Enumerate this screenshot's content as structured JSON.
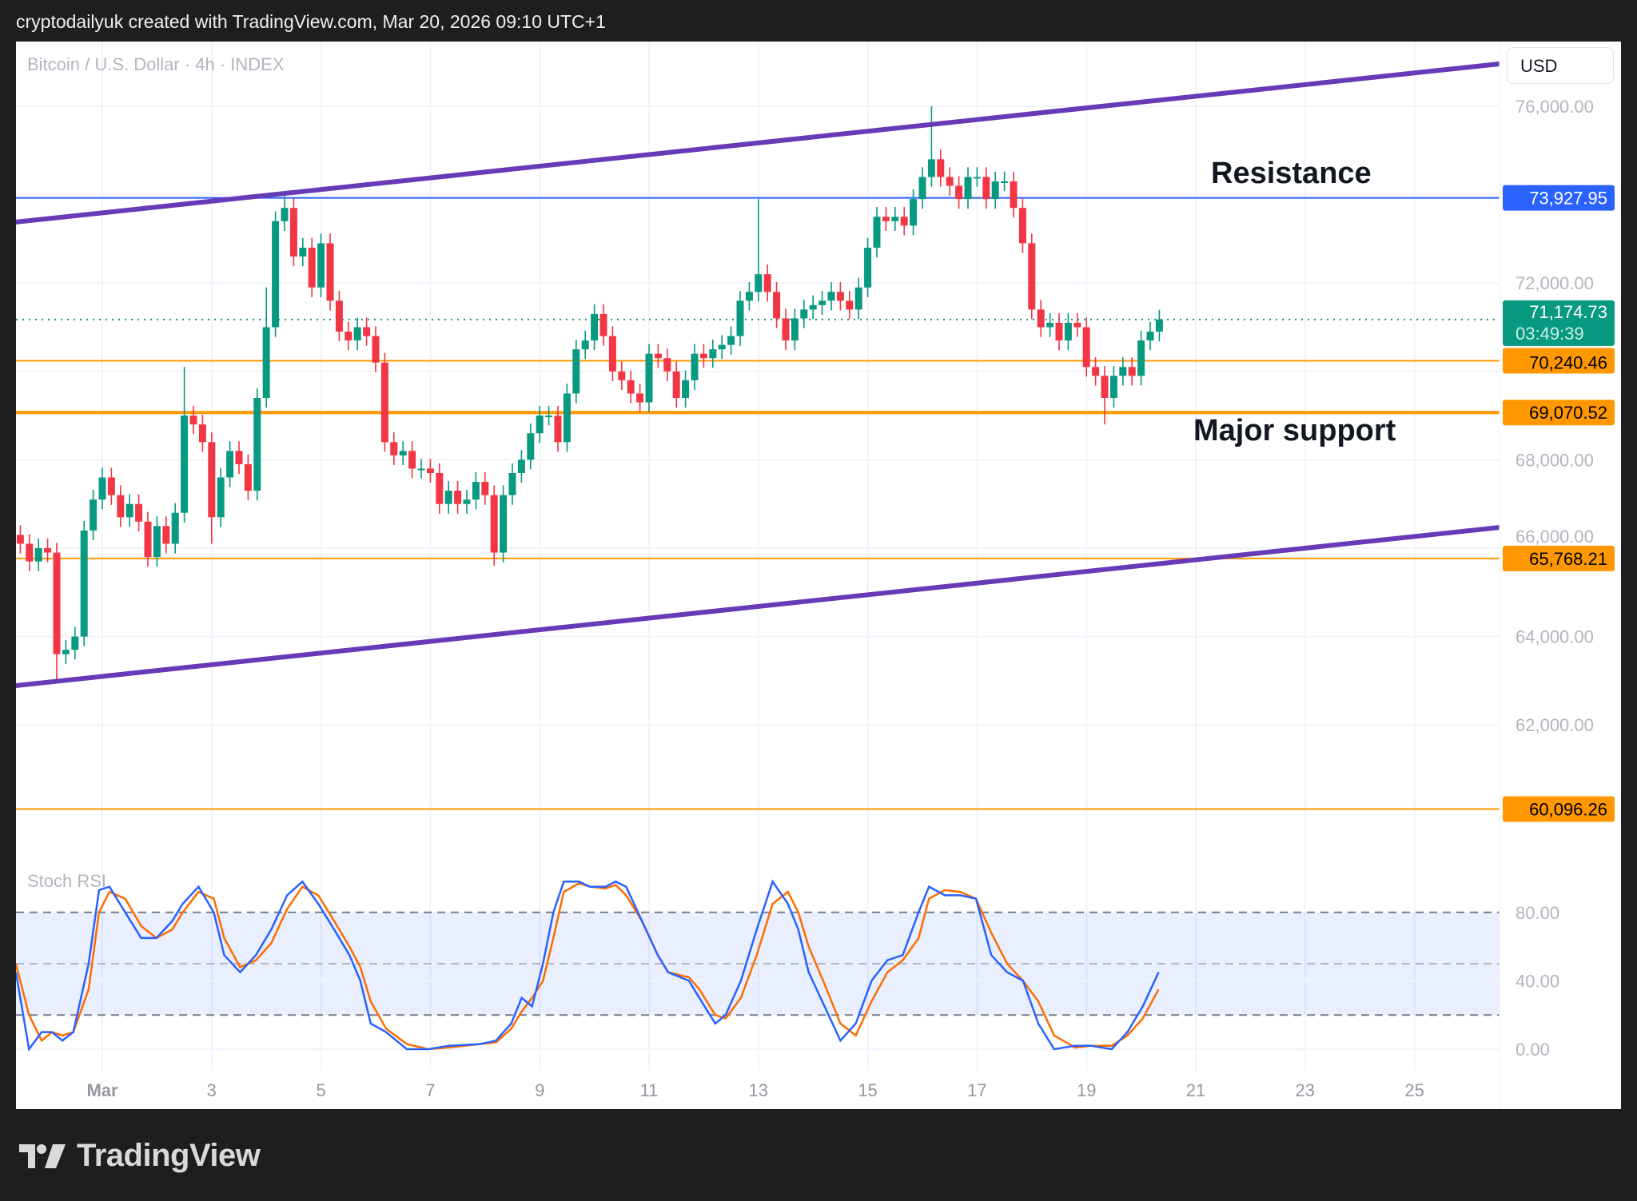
{
  "header": {
    "attribution": "cryptodailyuk created with TradingView.com, Mar 20, 2026 09:10 UTC+1"
  },
  "footer": {
    "logo_text": "TradingView"
  },
  "chart_data": {
    "type": "candlestick",
    "title": "Bitcoin / U.S. Dollar · 4h · INDEX",
    "currency": "USD",
    "ylim": [
      59000,
      77000
    ],
    "y_ticks": [
      {
        "value": 76000,
        "label": "76,000.00"
      },
      {
        "value": 74000,
        "label": ""
      },
      {
        "value": 72000,
        "label": "72,000.00"
      },
      {
        "value": 70000,
        "label": ""
      },
      {
        "value": 68000,
        "label": "68,000.00"
      },
      {
        "value": 66000,
        "label": "66,000.00"
      },
      {
        "value": 64000,
        "label": "64,000.00"
      },
      {
        "value": 62000,
        "label": "62,000.00"
      }
    ],
    "x_ticks": [
      {
        "day": 1,
        "label": "Mar"
      },
      {
        "day": 3,
        "label": "3"
      },
      {
        "day": 5,
        "label": "5"
      },
      {
        "day": 7,
        "label": "7"
      },
      {
        "day": 9,
        "label": "9"
      },
      {
        "day": 11,
        "label": "11"
      },
      {
        "day": 13,
        "label": "13"
      },
      {
        "day": 15,
        "label": "15"
      },
      {
        "day": 17,
        "label": "17"
      },
      {
        "day": 19,
        "label": "19"
      },
      {
        "day": 21,
        "label": "21"
      },
      {
        "day": 23,
        "label": "23"
      },
      {
        "day": 25,
        "label": "25"
      }
    ],
    "candles": {
      "start_day": -0.5,
      "interval_hours": 4,
      "first_open": 66300,
      "close": [
        66100,
        65700,
        66000,
        65900,
        63600,
        63700,
        64000,
        66400,
        67100,
        67600,
        67200,
        66700,
        67000,
        66600,
        65800,
        66500,
        66100,
        66800,
        69000,
        68800,
        68400,
        66700,
        67600,
        68200,
        67900,
        67300,
        69400,
        71000,
        73400,
        73700,
        72600,
        72800,
        71900,
        72900,
        71600,
        70900,
        70700,
        71000,
        70800,
        70200,
        68400,
        68100,
        68200,
        67800,
        67800,
        67700,
        67000,
        67300,
        67000,
        67100,
        67500,
        67200,
        65900,
        67200,
        67700,
        68000,
        68600,
        69000,
        69000,
        68400,
        69500,
        70500,
        70700,
        71300,
        70800,
        70000,
        69800,
        69500,
        69300,
        70400,
        70300,
        70000,
        69400,
        69800,
        70400,
        70300,
        70500,
        70600,
        70800,
        71600,
        71800,
        72200,
        71800,
        71200,
        70700,
        71200,
        71400,
        71500,
        71600,
        71800,
        71600,
        71400,
        71900,
        72800,
        73500,
        73400,
        73500,
        73300,
        73900,
        74400,
        74800,
        74400,
        74200,
        73900,
        74400,
        74400,
        73900,
        74300,
        74300,
        73700,
        72900,
        71400,
        71000,
        71100,
        70700,
        71100,
        71000,
        70100,
        69900,
        69400,
        69900,
        70100,
        69900,
        70700,
        70900,
        71174.73
      ],
      "high_overrides": {
        "29": 74000,
        "81": 73900,
        "100": 76000,
        "27": 71900,
        "18": 70100
      },
      "low_overrides": {
        "4": 63000,
        "52": 65600,
        "119": 68800,
        "21": 66100
      }
    },
    "levels": [
      {
        "name": "resistance",
        "value": 73927.95,
        "label": "73,927.95",
        "color": "#2962ff"
      },
      {
        "name": "level-70240",
        "value": 70240.46,
        "label": "70,240.46",
        "color": "#ff9800"
      },
      {
        "name": "major-support",
        "value": 69070.52,
        "label": "69,070.52",
        "color": "#ff9800"
      },
      {
        "name": "level-65768",
        "value": 65768.21,
        "label": "65,768.21",
        "color": "#ff9800"
      },
      {
        "name": "level-60096",
        "value": 60096.26,
        "label": "60,096.26",
        "color": "#ff9800"
      }
    ],
    "last_price": {
      "value": 71174.73,
      "label": "71,174.73",
      "countdown": "03:49:39",
      "color": "#089981"
    },
    "trendlines": [
      {
        "name": "channel-upper",
        "from": [
          -0.58,
          73380
        ],
        "to": [
          26.56,
          76960
        ],
        "color": "#673ab7"
      },
      {
        "name": "channel-lower",
        "from": [
          -0.58,
          62890
        ],
        "to": [
          26.56,
          66470
        ],
        "color": "#673ab7"
      }
    ],
    "annotations": [
      {
        "text": "Resistance"
      },
      {
        "text": "Major support"
      }
    ],
    "colors": {
      "up": "#089981",
      "down": "#f23645"
    },
    "indicator": {
      "name": "Stoch RSI",
      "ylim": [
        0,
        100
      ],
      "band": [
        20,
        80
      ],
      "y_ticks": [
        {
          "value": 80,
          "label": "80.00"
        },
        {
          "value": 40,
          "label": "40.00"
        },
        {
          "value": 0,
          "label": "0.00"
        }
      ],
      "x_days": [
        -0.58,
        -0.34,
        -0.11,
        0.08,
        0.27,
        0.47,
        0.75,
        0.94,
        1.13,
        1.42,
        1.71,
        1.99,
        2.28,
        2.47,
        2.76,
        3.04,
        3.23,
        3.52,
        3.81,
        4.09,
        4.38,
        4.66,
        4.95,
        5.24,
        5.52,
        5.72,
        5.91,
        6.19,
        6.57,
        6.96,
        7.34,
        7.91,
        8.2,
        8.48,
        8.67,
        8.86,
        9.06,
        9.25,
        9.44,
        9.72,
        9.92,
        10.2,
        10.39,
        10.58,
        10.87,
        11.16,
        11.35,
        11.73,
        11.92,
        12.21,
        12.4,
        12.68,
        12.97,
        13.26,
        13.54,
        13.73,
        13.92,
        14.21,
        14.5,
        14.78,
        15.07,
        15.36,
        15.64,
        15.93,
        16.12,
        16.41,
        16.69,
        16.98,
        17.26,
        17.55,
        17.84,
        18.12,
        18.41,
        18.79,
        19.08,
        19.46,
        19.75,
        20.03,
        20.32
      ],
      "k": [
        45,
        0,
        10,
        10,
        5,
        10,
        50,
        93,
        95,
        80,
        65,
        65,
        75,
        85,
        95,
        80,
        55,
        45,
        55,
        70,
        90,
        98,
        85,
        70,
        55,
        40,
        15,
        10,
        0,
        0,
        2,
        3,
        5,
        15,
        30,
        25,
        50,
        80,
        98,
        98,
        95,
        95,
        98,
        95,
        75,
        55,
        45,
        40,
        30,
        15,
        20,
        40,
        70,
        98,
        85,
        70,
        45,
        25,
        5,
        15,
        40,
        52,
        55,
        80,
        95,
        90,
        90,
        88,
        55,
        45,
        40,
        15,
        0,
        2,
        2,
        0,
        10,
        25,
        45
      ],
      "d": [
        50,
        20,
        5,
        10,
        8,
        10,
        35,
        80,
        92,
        88,
        72,
        65,
        70,
        80,
        92,
        88,
        65,
        48,
        52,
        62,
        82,
        95,
        90,
        75,
        60,
        48,
        28,
        12,
        3,
        0,
        1,
        3,
        4,
        12,
        22,
        30,
        40,
        65,
        92,
        97,
        95,
        94,
        96,
        90,
        75,
        55,
        45,
        42,
        35,
        20,
        18,
        30,
        55,
        85,
        92,
        80,
        60,
        38,
        15,
        8,
        28,
        45,
        52,
        65,
        88,
        93,
        92,
        88,
        68,
        50,
        40,
        28,
        8,
        1,
        2,
        2,
        8,
        18,
        35
      ],
      "k_color": "#2962ff",
      "d_color": "#ff6d00"
    }
  }
}
